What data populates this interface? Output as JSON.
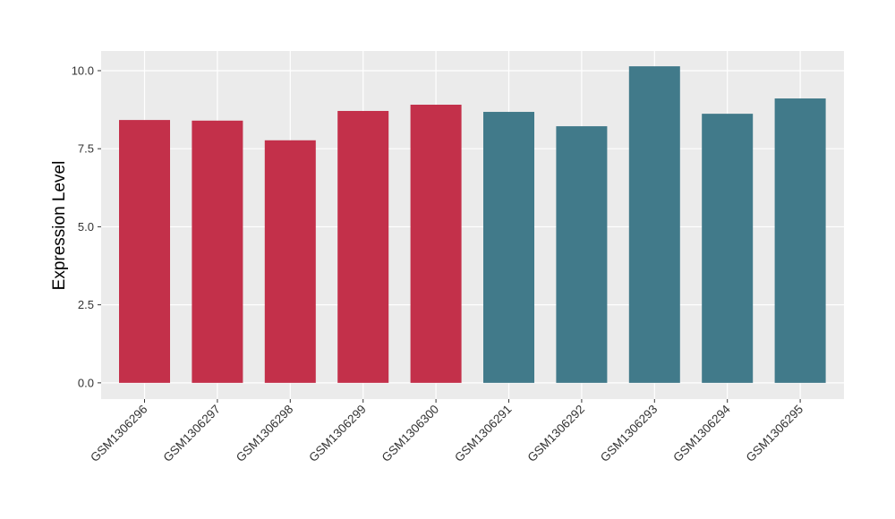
{
  "chart_data": {
    "type": "bar",
    "y_label": "Expression Level",
    "categories": [
      "GSM1306296",
      "GSM1306297",
      "GSM1306298",
      "GSM1306299",
      "GSM1306300",
      "GSM1306291",
      "GSM1306292",
      "GSM1306293",
      "GSM1306294",
      "GSM1306295"
    ],
    "values": [
      8.42,
      8.4,
      7.77,
      8.71,
      8.91,
      8.68,
      8.22,
      10.14,
      8.62,
      9.11
    ],
    "colors": [
      "#c3304a",
      "#c3304a",
      "#c3304a",
      "#c3304a",
      "#c3304a",
      "#417a8a",
      "#417a8a",
      "#417a8a",
      "#417a8a",
      "#417a8a"
    ],
    "ylim": [
      -0.52,
      10.63
    ],
    "yticks": [
      {
        "value": 0,
        "label": "0.0"
      },
      2.5,
      {
        "value": 5,
        "label": "5.0"
      },
      7.5,
      {
        "value": 10,
        "label": "10.0"
      }
    ],
    "grid": true
  }
}
